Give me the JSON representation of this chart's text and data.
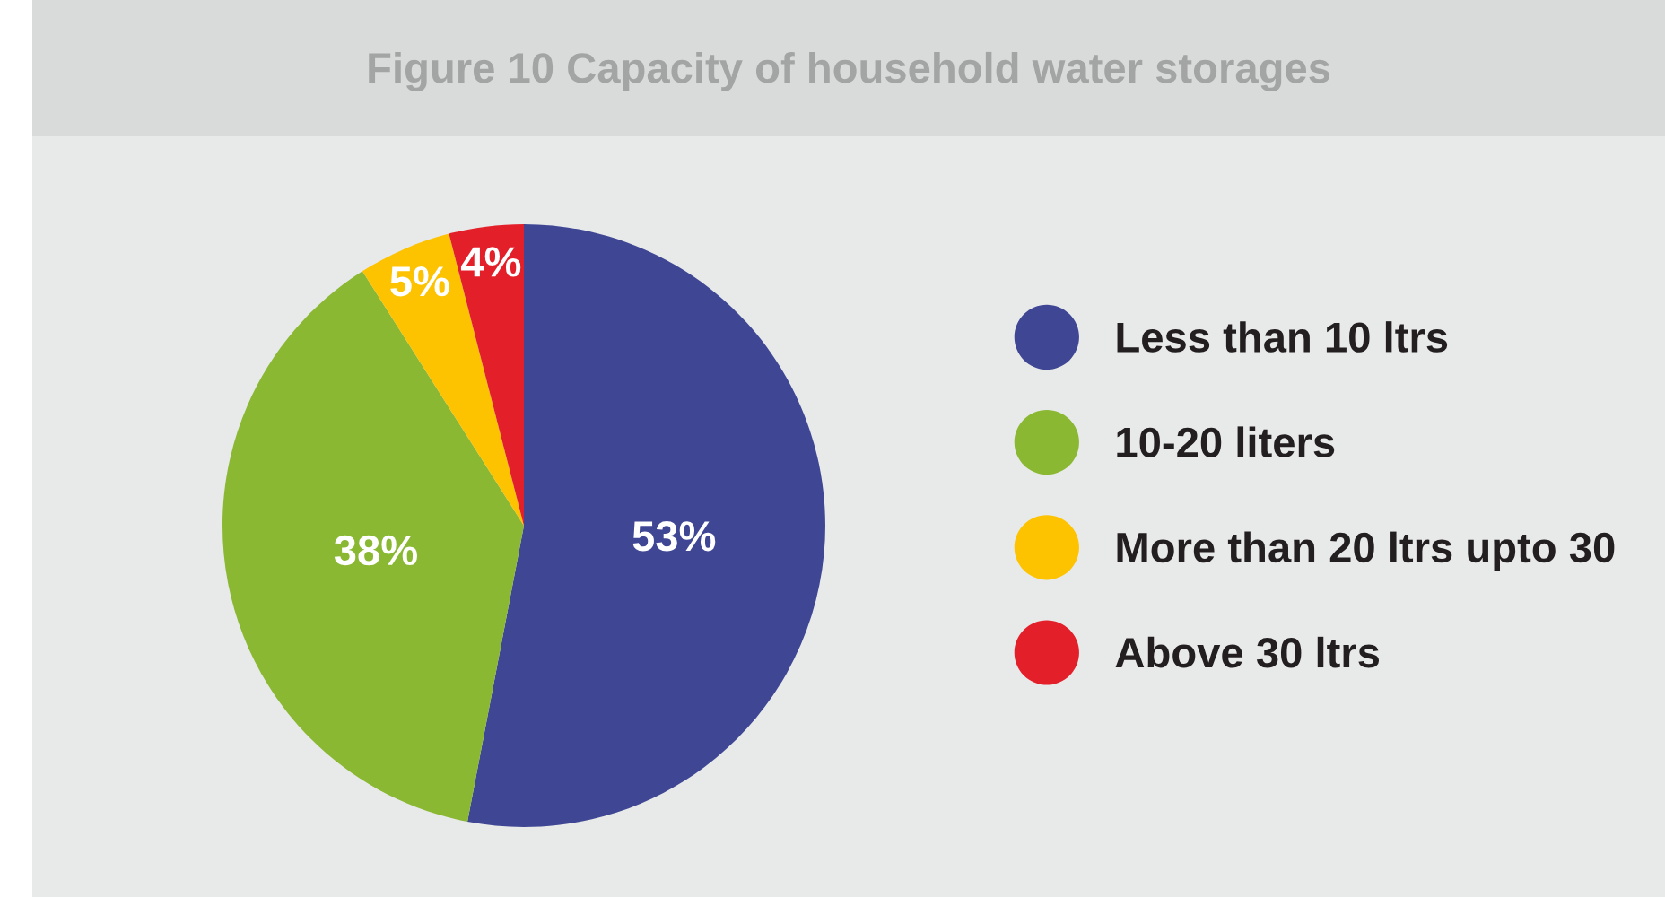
{
  "chart_data": {
    "type": "pie",
    "title": "Figure 10 Capacity of household water storages",
    "categories": [
      "Less than 10 ltrs",
      "10-20 liters",
      "More than 20 ltrs upto 30",
      "Above 30 ltrs"
    ],
    "values": [
      53,
      38,
      5,
      4
    ],
    "colors": [
      "#3f4795",
      "#8ab833",
      "#fdc300",
      "#e3202a"
    ],
    "value_labels": [
      "53%",
      "38%",
      "5%",
      "4%"
    ],
    "legend": "right"
  }
}
